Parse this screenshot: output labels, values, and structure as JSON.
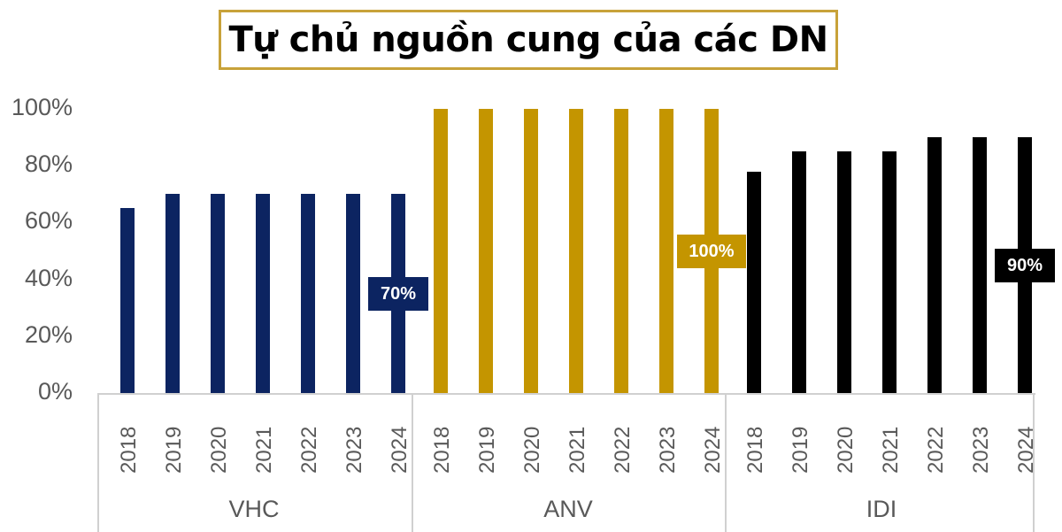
{
  "title": "Tự chủ nguồn cung của các DN",
  "y_ticks": [
    "100%",
    "80%",
    "60%",
    "40%",
    "20%",
    "0%"
  ],
  "colors": {
    "VHC": "#0c2461",
    "ANV": "#c49500",
    "IDI": "#000000",
    "title_border": "#c8a23a",
    "axis_text": "#595959"
  },
  "chart_data": {
    "type": "bar",
    "title": "Tự chủ nguồn cung của các DN",
    "xlabel": "",
    "ylabel": "",
    "ylim": [
      0,
      100
    ],
    "y_ticks": [
      "0%",
      "20%",
      "40%",
      "60%",
      "80%",
      "100%"
    ],
    "grid": false,
    "legend": "none",
    "categories": [
      "2018",
      "2019",
      "2020",
      "2021",
      "2022",
      "2023",
      "2024"
    ],
    "series": [
      {
        "name": "VHC",
        "color": "#0c2461",
        "values": [
          65,
          70,
          70,
          70,
          70,
          70,
          70
        ],
        "data_label": "70%"
      },
      {
        "name": "ANV",
        "color": "#c49500",
        "values": [
          100,
          100,
          100,
          100,
          100,
          100,
          100
        ],
        "data_label": "100%"
      },
      {
        "name": "IDI",
        "color": "#000000",
        "values": [
          78,
          85,
          85,
          85,
          90,
          90,
          90
        ],
        "data_label": "90%"
      }
    ]
  }
}
